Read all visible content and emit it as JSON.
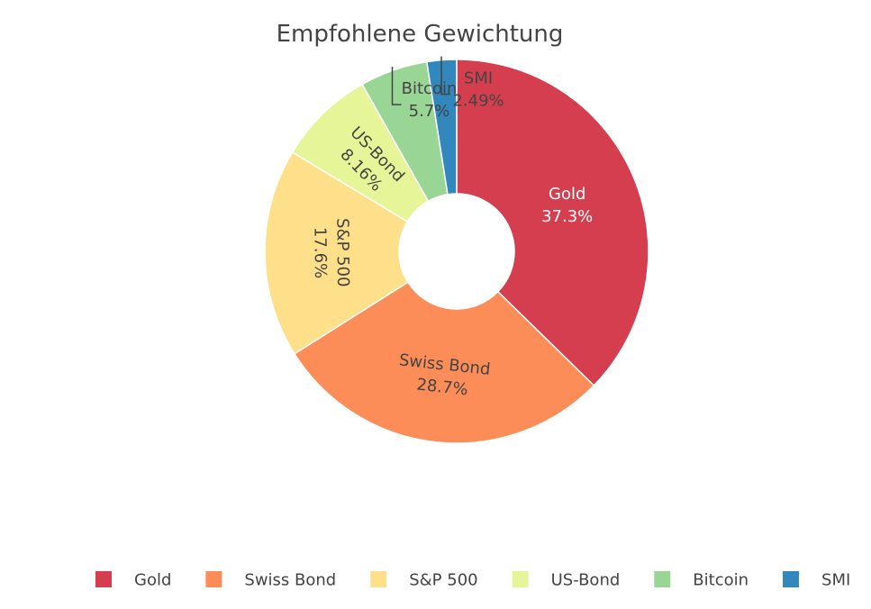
{
  "chart_data": {
    "type": "pie",
    "title": "Empfohlene Gewichtung",
    "hole": true,
    "legend_placement": "bottom",
    "slices": [
      {
        "label": "Gold",
        "value": 37.3,
        "value_label": "37.3%",
        "color": "#d53e4f"
      },
      {
        "label": "Swiss Bond",
        "value": 28.7,
        "value_label": "28.7%",
        "color": "#fc8d59"
      },
      {
        "label": "S&P 500",
        "value": 17.6,
        "value_label": "17.6%",
        "color": "#fee08b"
      },
      {
        "label": "US-Bond",
        "value": 8.16,
        "value_label": "8.16%",
        "color": "#e6f598"
      },
      {
        "label": "Bitcoin",
        "value": 5.7,
        "value_label": "5.7%",
        "color": "#99d594"
      },
      {
        "label": "SMI",
        "value": 2.49,
        "value_label": "2.49%",
        "color": "#3288bd"
      }
    ]
  }
}
